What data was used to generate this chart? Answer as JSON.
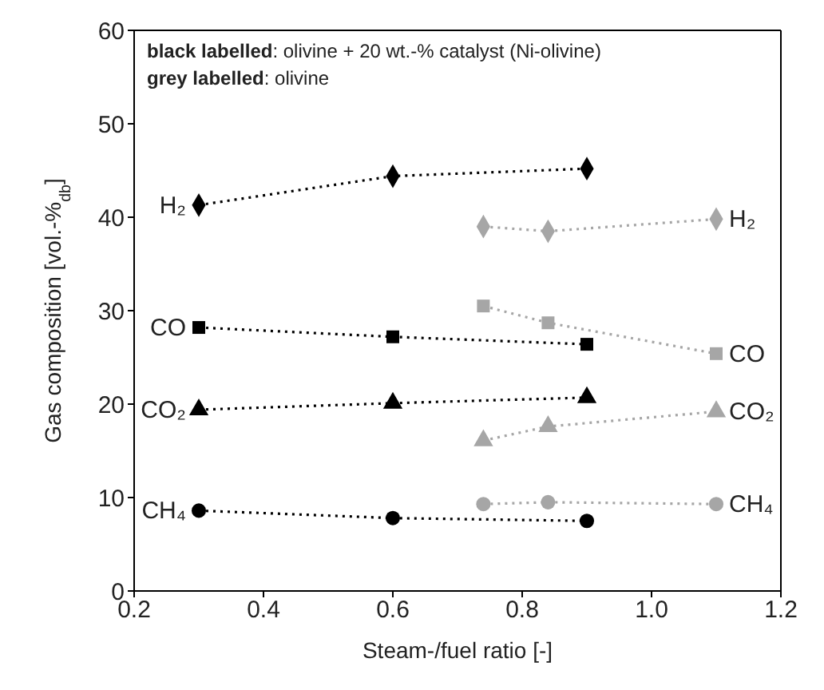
{
  "chart_data": {
    "type": "scatter",
    "xlabel": "Steam-/fuel ratio [-]",
    "ylabel": "Gas composition [vol.-%$_{db}$]",
    "annotations": [
      "black labelled: olivine + 20 wt.-% catalyst (Ni-olivine)",
      "grey labelled: olivine"
    ],
    "xlim": [
      0.2,
      1.2
    ],
    "xticks": [
      {
        "value": 0.2,
        "label": "0.2"
      },
      {
        "value": 0.4,
        "label": "0.4"
      },
      {
        "value": 0.6,
        "label": "0.6"
      },
      {
        "value": 0.8,
        "label": "0.8"
      },
      {
        "value": 1.0,
        "label": "1.0"
      },
      {
        "value": 1.2,
        "label": "1.2"
      }
    ],
    "ylim": [
      0,
      60
    ],
    "yticks": [
      0,
      10,
      20,
      30,
      40,
      50,
      60
    ],
    "line_style": "dotted",
    "series": [
      {
        "name": "H₂",
        "color": "#000000",
        "marker": "diamond",
        "x": [
          0.3,
          0.6,
          0.9
        ],
        "values": [
          41.3,
          44.4,
          45.2
        ]
      },
      {
        "name": "CO",
        "color": "#000000",
        "marker": "square",
        "x": [
          0.3,
          0.6,
          0.9
        ],
        "values": [
          28.2,
          27.2,
          26.4
        ]
      },
      {
        "name": "CO₂",
        "color": "#000000",
        "marker": "triangle",
        "x": [
          0.3,
          0.6,
          0.9
        ],
        "values": [
          19.4,
          20.1,
          20.7
        ]
      },
      {
        "name": "CH₄",
        "color": "#000000",
        "marker": "circle",
        "x": [
          0.3,
          0.6,
          0.9
        ],
        "values": [
          8.6,
          7.8,
          7.5
        ]
      },
      {
        "name": "H₂",
        "color": "#a6a6a6",
        "marker": "diamond",
        "x": [
          0.74,
          0.84,
          1.1
        ],
        "values": [
          39.0,
          38.5,
          39.8
        ]
      },
      {
        "name": "CO",
        "color": "#a6a6a6",
        "marker": "square",
        "x": [
          0.74,
          0.84,
          1.1
        ],
        "values": [
          30.5,
          28.7,
          25.4
        ]
      },
      {
        "name": "CO₂",
        "color": "#a6a6a6",
        "marker": "triangle",
        "x": [
          0.74,
          0.84,
          1.1
        ],
        "values": [
          16.1,
          17.6,
          19.2
        ]
      },
      {
        "name": "CH₄",
        "color": "#a6a6a6",
        "marker": "circle",
        "x": [
          0.74,
          0.84,
          1.1
        ],
        "values": [
          9.3,
          9.5,
          9.3
        ]
      }
    ]
  }
}
